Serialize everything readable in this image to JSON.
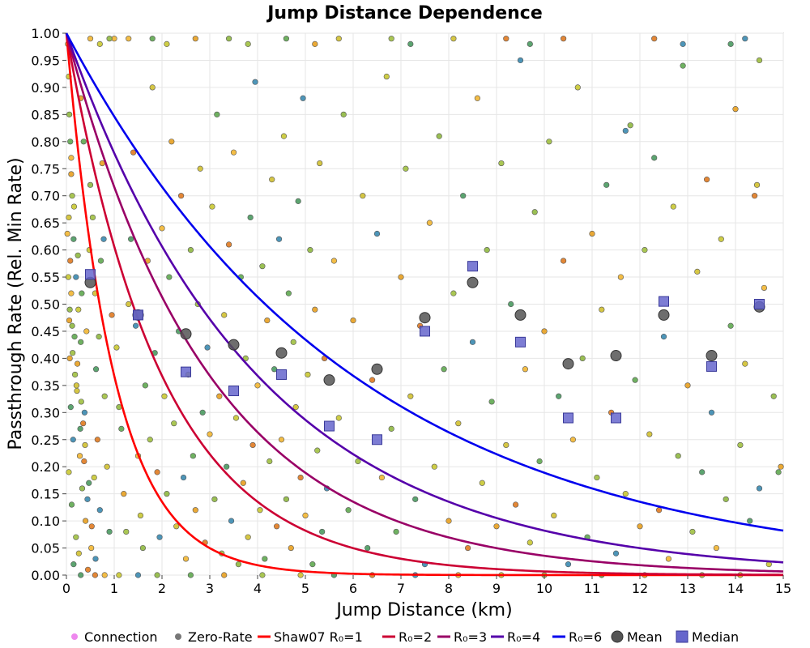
{
  "chart_data": {
    "type": "scatter",
    "title": "Jump Distance Dependence",
    "xlabel": "Jump Distance (km)",
    "ylabel": "Passthrough Rate (Rel. Min Rate)",
    "xlim": [
      0,
      15
    ],
    "ylim": [
      0,
      1
    ],
    "x_ticks": [
      "0",
      "1",
      "2",
      "3",
      "4",
      "5",
      "6",
      "7",
      "8",
      "9",
      "10",
      "11",
      "12",
      "13",
      "14",
      "15"
    ],
    "y_ticks": [
      "0.00",
      "0.05",
      "0.10",
      "0.15",
      "0.20",
      "0.25",
      "0.30",
      "0.35",
      "0.40",
      "0.45",
      "0.50",
      "0.55",
      "0.60",
      "0.65",
      "0.70",
      "0.75",
      "0.80",
      "0.85",
      "0.90",
      "0.95",
      "1.00"
    ],
    "grid": true,
    "legend_placement": "bottom",
    "legend": [
      {
        "label": "Connection",
        "kind": "dot",
        "color": "#ee88ee"
      },
      {
        "label": "Zero-Rate",
        "kind": "dot",
        "color": "#777777"
      },
      {
        "label": "Shaw07 R₀=1",
        "kind": "line",
        "color": "#ff0000"
      },
      {
        "label": "R₀=2",
        "kind": "line",
        "color": "#cc0033"
      },
      {
        "label": "R₀=3",
        "kind": "line",
        "color": "#990066"
      },
      {
        "label": "R₀=4",
        "kind": "line",
        "color": "#5500aa"
      },
      {
        "label": "R₀=6",
        "kind": "line",
        "color": "#0000ee"
      },
      {
        "label": "Mean",
        "kind": "circle",
        "color": "#555555"
      },
      {
        "label": "Median",
        "kind": "square",
        "color": "#6666cc"
      }
    ],
    "curves": [
      {
        "r0": 1,
        "color": "#ff0000",
        "formula": "y = exp(-x / R0)"
      },
      {
        "r0": 2,
        "color": "#cc0033",
        "formula": "y = exp(-x / R0)"
      },
      {
        "r0": 3,
        "color": "#990066",
        "formula": "y = exp(-x / R0)"
      },
      {
        "r0": 4,
        "color": "#5500aa",
        "formula": "y = exp(-x / R0)"
      },
      {
        "r0": 6,
        "color": "#0000ee",
        "formula": "y = exp(-x / R0)"
      }
    ],
    "mean": {
      "x": [
        0.5,
        1.5,
        2.5,
        3.5,
        4.5,
        5.5,
        6.5,
        7.5,
        8.5,
        9.5,
        10.5,
        11.5,
        12.5,
        13.5,
        14.5
      ],
      "y": [
        0.54,
        0.48,
        0.445,
        0.425,
        0.41,
        0.36,
        0.38,
        0.475,
        0.54,
        0.48,
        0.39,
        0.405,
        0.48,
        0.405,
        0.495
      ]
    },
    "median": {
      "x": [
        0.5,
        1.5,
        2.5,
        3.5,
        4.5,
        5.5,
        6.5,
        7.5,
        8.5,
        9.5,
        10.5,
        11.5,
        12.5,
        13.5,
        14.5
      ],
      "y": [
        0.555,
        0.48,
        0.375,
        0.34,
        0.37,
        0.275,
        0.25,
        0.45,
        0.57,
        0.43,
        0.29,
        0.29,
        0.505,
        0.385,
        0.5
      ]
    },
    "scatter_points": [
      [
        0.03,
        0.98
      ],
      [
        0.05,
        0.92
      ],
      [
        0.06,
        0.85
      ],
      [
        0.08,
        0.8
      ],
      [
        0.1,
        0.74
      ],
      [
        0.12,
        0.7
      ],
      [
        0.05,
        0.66
      ],
      [
        0.15,
        0.62
      ],
      [
        0.08,
        0.58
      ],
      [
        0.2,
        0.55
      ],
      [
        0.1,
        0.52
      ],
      [
        0.25,
        0.49
      ],
      [
        0.12,
        0.46
      ],
      [
        0.3,
        0.43
      ],
      [
        0.07,
        0.4
      ],
      [
        0.18,
        0.37
      ],
      [
        0.22,
        0.34
      ],
      [
        0.09,
        0.31
      ],
      [
        0.35,
        0.28
      ],
      [
        0.14,
        0.25
      ],
      [
        0.28,
        0.22
      ],
      [
        0.05,
        0.19
      ],
      [
        0.33,
        0.16
      ],
      [
        0.11,
        0.13
      ],
      [
        0.4,
        0.1
      ],
      [
        0.2,
        0.07
      ],
      [
        0.26,
        0.04
      ],
      [
        0.15,
        0.02
      ],
      [
        0.45,
        0.01
      ],
      [
        0.38,
        0.3
      ],
      [
        0.42,
        0.45
      ],
      [
        0.48,
        0.6
      ],
      [
        0.5,
        0.72
      ],
      [
        0.36,
        0.8
      ],
      [
        0.3,
        0.88
      ],
      [
        0.55,
        0.66
      ],
      [
        0.6,
        0.52
      ],
      [
        0.62,
        0.38
      ],
      [
        0.65,
        0.25
      ],
      [
        0.7,
        0.12
      ],
      [
        0.52,
        0.05
      ],
      [
        0.58,
        0.18
      ],
      [
        0.68,
        0.44
      ],
      [
        0.72,
        0.58
      ],
      [
        0.75,
        0.76
      ],
      [
        0.8,
        0.33
      ],
      [
        0.85,
        0.2
      ],
      [
        0.9,
        0.08
      ],
      [
        0.95,
        0.48
      ],
      [
        0.78,
        0.62
      ],
      [
        0.1,
        0.77
      ],
      [
        0.16,
        0.68
      ],
      [
        0.24,
        0.59
      ],
      [
        0.32,
        0.52
      ],
      [
        0.06,
        0.47
      ],
      [
        0.13,
        0.41
      ],
      [
        0.21,
        0.35
      ],
      [
        0.29,
        0.27
      ],
      [
        0.37,
        0.21
      ],
      [
        0.44,
        0.14
      ],
      [
        0.02,
        0.63
      ],
      [
        0.04,
        0.55
      ],
      [
        0.07,
        0.49
      ],
      [
        0.17,
        0.44
      ],
      [
        0.23,
        0.39
      ],
      [
        0.31,
        0.32
      ],
      [
        0.39,
        0.24
      ],
      [
        0.47,
        0.17
      ],
      [
        0.53,
        0.09
      ],
      [
        0.61,
        0.03
      ],
      [
        1.0,
        0.99
      ],
      [
        1.05,
        0.42
      ],
      [
        1.1,
        0.31
      ],
      [
        1.15,
        0.27
      ],
      [
        1.2,
        0.15
      ],
      [
        1.25,
        0.08
      ],
      [
        1.3,
        0.5
      ],
      [
        1.35,
        0.62
      ],
      [
        1.4,
        0.78
      ],
      [
        1.45,
        0.46
      ],
      [
        1.5,
        0.22
      ],
      [
        1.55,
        0.11
      ],
      [
        1.6,
        0.05
      ],
      [
        1.65,
        0.35
      ],
      [
        1.7,
        0.58
      ],
      [
        1.75,
        0.25
      ],
      [
        1.8,
        0.9
      ],
      [
        1.85,
        0.41
      ],
      [
        1.9,
        0.19
      ],
      [
        1.95,
        0.07
      ],
      [
        2.0,
        0.64
      ],
      [
        2.05,
        0.33
      ],
      [
        2.1,
        0.15
      ],
      [
        2.15,
        0.55
      ],
      [
        2.2,
        0.8
      ],
      [
        2.25,
        0.28
      ],
      [
        2.3,
        0.09
      ],
      [
        2.35,
        0.45
      ],
      [
        2.4,
        0.7
      ],
      [
        2.45,
        0.18
      ],
      [
        2.5,
        0.03
      ],
      [
        2.55,
        0.37
      ],
      [
        2.6,
        0.6
      ],
      [
        2.65,
        0.22
      ],
      [
        2.7,
        0.12
      ],
      [
        2.75,
        0.5
      ],
      [
        2.8,
        0.75
      ],
      [
        2.85,
        0.3
      ],
      [
        2.9,
        0.06
      ],
      [
        2.95,
        0.42
      ],
      [
        3.0,
        0.26
      ],
      [
        3.05,
        0.68
      ],
      [
        3.1,
        0.14
      ],
      [
        3.15,
        0.85
      ],
      [
        3.2,
        0.33
      ],
      [
        3.25,
        0.04
      ],
      [
        3.3,
        0.48
      ],
      [
        3.35,
        0.2
      ],
      [
        3.4,
        0.61
      ],
      [
        3.45,
        0.1
      ],
      [
        3.5,
        0.78
      ],
      [
        3.55,
        0.29
      ],
      [
        3.6,
        0.02
      ],
      [
        3.65,
        0.55
      ],
      [
        3.7,
        0.17
      ],
      [
        3.75,
        0.4
      ],
      [
        3.8,
        0.07
      ],
      [
        3.85,
        0.66
      ],
      [
        3.9,
        0.24
      ],
      [
        3.95,
        0.91
      ],
      [
        4.0,
        0.35
      ],
      [
        4.05,
        0.12
      ],
      [
        4.1,
        0.57
      ],
      [
        4.15,
        0.03
      ],
      [
        4.2,
        0.47
      ],
      [
        4.25,
        0.21
      ],
      [
        4.3,
        0.73
      ],
      [
        4.35,
        0.38
      ],
      [
        4.4,
        0.09
      ],
      [
        4.45,
        0.62
      ],
      [
        4.5,
        0.25
      ],
      [
        4.55,
        0.81
      ],
      [
        4.6,
        0.14
      ],
      [
        4.65,
        0.52
      ],
      [
        4.7,
        0.05
      ],
      [
        4.75,
        0.43
      ],
      [
        4.8,
        0.31
      ],
      [
        4.85,
        0.69
      ],
      [
        4.9,
        0.18
      ],
      [
        4.95,
        0.88
      ],
      [
        5.0,
        0.11
      ],
      [
        5.05,
        0.37
      ],
      [
        5.1,
        0.6
      ],
      [
        5.15,
        0.02
      ],
      [
        5.2,
        0.49
      ],
      [
        5.25,
        0.23
      ],
      [
        5.3,
        0.76
      ],
      [
        5.35,
        0.08
      ],
      [
        5.4,
        0.4
      ],
      [
        5.45,
        0.16
      ],
      [
        5.6,
        0.58
      ],
      [
        5.7,
        0.29
      ],
      [
        5.8,
        0.85
      ],
      [
        5.9,
        0.12
      ],
      [
        6.0,
        0.47
      ],
      [
        6.1,
        0.21
      ],
      [
        6.2,
        0.7
      ],
      [
        6.3,
        0.05
      ],
      [
        6.4,
        0.36
      ],
      [
        6.5,
        0.63
      ],
      [
        6.6,
        0.18
      ],
      [
        6.7,
        0.92
      ],
      [
        6.8,
        0.27
      ],
      [
        6.9,
        0.08
      ],
      [
        7.0,
        0.55
      ],
      [
        7.1,
        0.75
      ],
      [
        7.2,
        0.33
      ],
      [
        7.3,
        0.14
      ],
      [
        7.4,
        0.46
      ],
      [
        7.5,
        0.02
      ],
      [
        7.6,
        0.65
      ],
      [
        7.7,
        0.2
      ],
      [
        7.8,
        0.81
      ],
      [
        7.9,
        0.38
      ],
      [
        8.0,
        0.1
      ],
      [
        8.1,
        0.52
      ],
      [
        8.2,
        0.28
      ],
      [
        8.3,
        0.7
      ],
      [
        8.4,
        0.05
      ],
      [
        8.5,
        0.43
      ],
      [
        8.6,
        0.88
      ],
      [
        8.7,
        0.17
      ],
      [
        8.8,
        0.6
      ],
      [
        8.9,
        0.32
      ],
      [
        9.0,
        0.09
      ],
      [
        9.1,
        0.76
      ],
      [
        9.2,
        0.24
      ],
      [
        9.3,
        0.5
      ],
      [
        9.4,
        0.13
      ],
      [
        9.5,
        0.95
      ],
      [
        9.6,
        0.38
      ],
      [
        9.7,
        0.06
      ],
      [
        9.8,
        0.67
      ],
      [
        9.9,
        0.21
      ],
      [
        10.0,
        0.45
      ],
      [
        10.1,
        0.8
      ],
      [
        10.2,
        0.11
      ],
      [
        10.3,
        0.33
      ],
      [
        10.4,
        0.58
      ],
      [
        10.5,
        0.02
      ],
      [
        10.6,
        0.25
      ],
      [
        10.7,
        0.9
      ],
      [
        10.8,
        0.4
      ],
      [
        10.9,
        0.07
      ],
      [
        11.0,
        0.63
      ],
      [
        11.1,
        0.18
      ],
      [
        11.2,
        0.49
      ],
      [
        11.3,
        0.72
      ],
      [
        11.4,
        0.3
      ],
      [
        11.5,
        0.04
      ],
      [
        11.6,
        0.55
      ],
      [
        11.7,
        0.15
      ],
      [
        11.8,
        0.83
      ],
      [
        11.9,
        0.36
      ],
      [
        12.0,
        0.09
      ],
      [
        12.1,
        0.6
      ],
      [
        12.2,
        0.26
      ],
      [
        12.3,
        0.77
      ],
      [
        12.4,
        0.12
      ],
      [
        12.5,
        0.44
      ],
      [
        12.6,
        0.03
      ],
      [
        12.7,
        0.68
      ],
      [
        12.8,
        0.22
      ],
      [
        12.9,
        0.94
      ],
      [
        13.0,
        0.35
      ],
      [
        13.1,
        0.08
      ],
      [
        13.2,
        0.56
      ],
      [
        13.3,
        0.19
      ],
      [
        13.4,
        0.73
      ],
      [
        13.5,
        0.3
      ],
      [
        13.6,
        0.05
      ],
      [
        13.7,
        0.62
      ],
      [
        13.8,
        0.14
      ],
      [
        13.9,
        0.46
      ],
      [
        14.0,
        0.86
      ],
      [
        14.1,
        0.24
      ],
      [
        14.2,
        0.39
      ],
      [
        14.3,
        0.1
      ],
      [
        14.4,
        0.7
      ],
      [
        14.5,
        0.16
      ],
      [
        14.6,
        0.53
      ],
      [
        14.7,
        0.02
      ],
      [
        14.8,
        0.33
      ],
      [
        14.9,
        0.19
      ],
      [
        14.95,
        0.2
      ],
      [
        14.5,
        0.95
      ],
      [
        14.45,
        0.72
      ],
      [
        13.9,
        0.98
      ],
      [
        12.3,
        0.99
      ],
      [
        11.7,
        0.82
      ],
      [
        1.3,
        0.99
      ],
      [
        2.1,
        0.98
      ],
      [
        3.4,
        0.99
      ],
      [
        4.6,
        0.99
      ],
      [
        5.2,
        0.98
      ],
      [
        6.8,
        0.99
      ],
      [
        8.1,
        0.99
      ],
      [
        9.7,
        0.98
      ],
      [
        10.4,
        0.99
      ],
      [
        12.9,
        0.98
      ],
      [
        0.5,
        0.99
      ],
      [
        0.7,
        0.98
      ],
      [
        0.9,
        0.99
      ],
      [
        1.8,
        0.99
      ],
      [
        2.7,
        0.99
      ],
      [
        3.8,
        0.98
      ],
      [
        5.7,
        0.99
      ],
      [
        7.2,
        0.98
      ],
      [
        9.2,
        0.99
      ],
      [
        14.2,
        0.99
      ],
      [
        0.8,
        0.0
      ],
      [
        1.1,
        0.0
      ],
      [
        1.9,
        0.0
      ],
      [
        2.6,
        0.0
      ],
      [
        3.3,
        0.0
      ],
      [
        4.1,
        0.0
      ],
      [
        4.9,
        0.0
      ],
      [
        5.6,
        0.0
      ],
      [
        6.4,
        0.0
      ],
      [
        7.3,
        0.0
      ],
      [
        8.2,
        0.0
      ],
      [
        9.1,
        0.0
      ],
      [
        10.0,
        0.0
      ],
      [
        11.2,
        0.0
      ],
      [
        12.1,
        0.0
      ],
      [
        13.3,
        0.0
      ],
      [
        14.1,
        0.0
      ],
      [
        0.3,
        0.0
      ],
      [
        0.6,
        0.0
      ],
      [
        1.5,
        0.0
      ]
    ],
    "point_colors": [
      "#f2b632",
      "#c9c832",
      "#8fb840",
      "#5fa850",
      "#e8a020",
      "#a0c040",
      "#d0c030",
      "#4a9a60",
      "#e07a20",
      "#3a8ab0"
    ]
  }
}
